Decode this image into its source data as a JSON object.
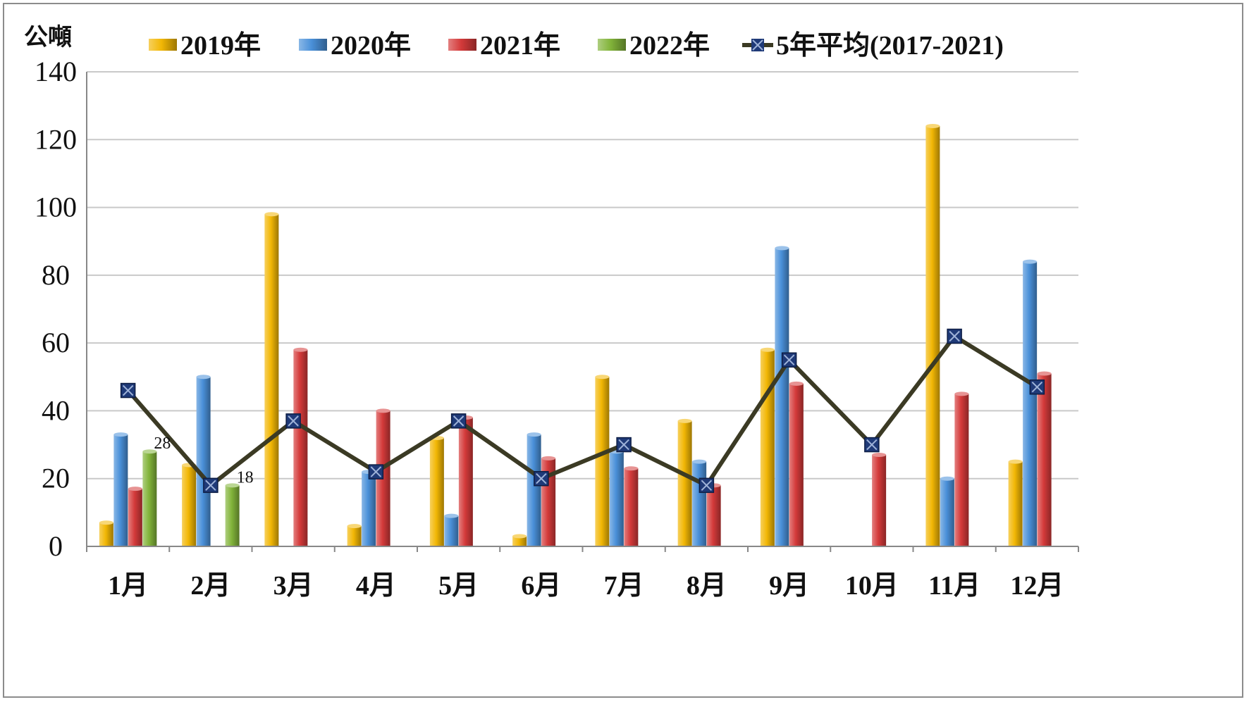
{
  "chart_data": {
    "type": "bar",
    "unit_label": "公噸",
    "categories": [
      "1月",
      "2月",
      "3月",
      "4月",
      "5月",
      "6月",
      "7月",
      "8月",
      "9月",
      "10月",
      "11月",
      "12月"
    ],
    "ylim": [
      0,
      140
    ],
    "y_ticks": [
      "0",
      "20",
      "40",
      "60",
      "80",
      "100",
      "120",
      "140"
    ],
    "grid": true,
    "legend_position": "top",
    "series": [
      {
        "name": "2019年",
        "type": "bar",
        "color": "#F2B705",
        "values": [
          7,
          24,
          98,
          6,
          32,
          3,
          50,
          37,
          58,
          0,
          124,
          25
        ]
      },
      {
        "name": "2020年",
        "type": "bar",
        "color": "#4A90D9",
        "values": [
          33,
          50,
          0,
          22,
          9,
          33,
          28,
          25,
          88,
          0,
          20,
          84
        ]
      },
      {
        "name": "2021年",
        "type": "bar",
        "color": "#D43A3A",
        "values": [
          17,
          0,
          58,
          40,
          38,
          26,
          23,
          18,
          48,
          27,
          45,
          51
        ]
      },
      {
        "name": "2022年",
        "type": "bar",
        "color": "#82B43A",
        "values": [
          28,
          18,
          null,
          null,
          null,
          null,
          null,
          null,
          null,
          null,
          null,
          null
        ]
      },
      {
        "name": "5年平均(2017-2021)",
        "type": "line",
        "color": "#3B3A24",
        "marker_color": "#1F3A78",
        "values": [
          46,
          18,
          37,
          22,
          37,
          20,
          30,
          18,
          55,
          30,
          62,
          47
        ]
      }
    ],
    "data_labels": [
      {
        "series": "2022年",
        "category": "1月",
        "text": "28"
      },
      {
        "series": "2022年",
        "category": "2月",
        "text": "18"
      }
    ]
  }
}
